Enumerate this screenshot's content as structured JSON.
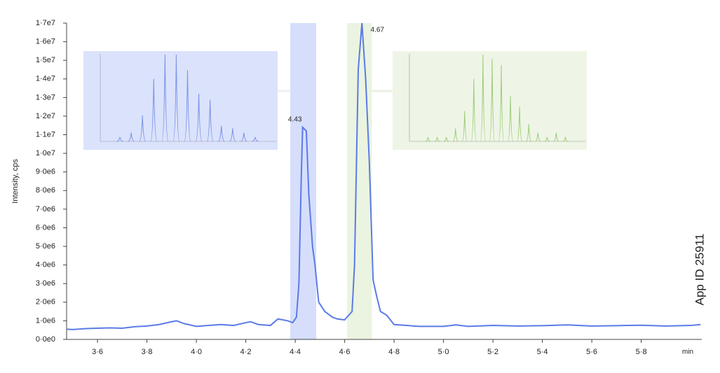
{
  "chart_data": {
    "type": "line",
    "y_label": "Intensity, cps",
    "x_label": "min",
    "side_label": "App ID 25911",
    "xlim": [
      3.475,
      6.045
    ],
    "ylim": [
      0,
      17000000
    ],
    "xticks": [
      {
        "value": 3.6,
        "label": "3·6"
      },
      {
        "value": 3.8,
        "label": "3·8"
      },
      {
        "value": 4.0,
        "label": "4·0"
      },
      {
        "value": 4.2,
        "label": "4·2"
      },
      {
        "value": 4.4,
        "label": "4·4"
      },
      {
        "value": 4.6,
        "label": "4·6"
      },
      {
        "value": 4.8,
        "label": "4·8"
      },
      {
        "value": 5.0,
        "label": "5·0"
      },
      {
        "value": 5.2,
        "label": "5·2"
      },
      {
        "value": 5.4,
        "label": "5·4"
      },
      {
        "value": 5.6,
        "label": "5·6"
      },
      {
        "value": 5.8,
        "label": "5·8"
      }
    ],
    "yticks": [
      {
        "value": 0,
        "label": "0·0e0"
      },
      {
        "value": 1000000,
        "label": "1·0e6"
      },
      {
        "value": 2000000,
        "label": "2·0e6"
      },
      {
        "value": 3000000,
        "label": "3·0e6"
      },
      {
        "value": 4000000,
        "label": "4·0e6"
      },
      {
        "value": 5000000,
        "label": "5·0e6"
      },
      {
        "value": 6000000,
        "label": "6·0e6"
      },
      {
        "value": 7000000,
        "label": "7·0e6"
      },
      {
        "value": 8000000,
        "label": "8·0e6"
      },
      {
        "value": 9000000,
        "label": "9·0e6"
      },
      {
        "value": 10000000,
        "label": "1·0e7"
      },
      {
        "value": 11000000,
        "label": "1·1e7"
      },
      {
        "value": 12000000,
        "label": "1·2e7"
      },
      {
        "value": 13000000,
        "label": "1·3e7"
      },
      {
        "value": 14000000,
        "label": "1·4e7"
      },
      {
        "value": 15000000,
        "label": "1·5e7"
      },
      {
        "value": 16000000,
        "label": "1·6e7"
      },
      {
        "value": 17000000,
        "label": "1·7e7"
      }
    ],
    "series": [
      {
        "color": "#5b7be6",
        "x": [
          3.475,
          3.5,
          3.55,
          3.6,
          3.65,
          3.7,
          3.75,
          3.8,
          3.85,
          3.9,
          3.92,
          3.95,
          4.0,
          4.05,
          4.1,
          4.15,
          4.2,
          4.22,
          4.25,
          4.3,
          4.33,
          4.37,
          4.39,
          4.405,
          4.415,
          4.425,
          4.43,
          4.445,
          4.455,
          4.47,
          4.48,
          4.495,
          4.52,
          4.55,
          4.57,
          4.6,
          4.63,
          4.64,
          4.655,
          4.67,
          4.685,
          4.7,
          4.715,
          4.73,
          4.745,
          4.77,
          4.8,
          4.85,
          4.9,
          5.0,
          5.05,
          5.1,
          5.2,
          5.3,
          5.4,
          5.5,
          5.6,
          5.7,
          5.8,
          5.9,
          6.0,
          6.04
        ],
        "values": [
          550000,
          530000,
          580000,
          600000,
          620000,
          600000,
          680000,
          720000,
          800000,
          950000,
          1000000,
          850000,
          700000,
          750000,
          800000,
          750000,
          900000,
          950000,
          800000,
          750000,
          1100000,
          1000000,
          900000,
          1200000,
          3000000,
          9000000,
          11400000,
          11200000,
          7800000,
          5000000,
          4000000,
          2000000,
          1500000,
          1200000,
          1100000,
          1050000,
          1500000,
          4000000,
          14500000,
          17000000,
          14000000,
          9500000,
          3200000,
          2300000,
          1500000,
          1300000,
          800000,
          750000,
          700000,
          700000,
          780000,
          700000,
          750000,
          720000,
          740000,
          780000,
          720000,
          740000,
          760000,
          720000,
          750000,
          800000
        ]
      }
    ],
    "bands": [
      {
        "from": 4.38,
        "to": 4.485,
        "color": "#d6defc"
      },
      {
        "from": 4.61,
        "to": 4.71,
        "color": "#eaf4e0"
      }
    ],
    "annotations": [
      {
        "text": "4.43",
        "x": 4.43,
        "y": 11400000
      },
      {
        "text": "4.67",
        "x": 4.67,
        "y": 17000000
      }
    ],
    "insets": [
      {
        "color": "#dbe2fb",
        "line": "#7892e8",
        "values": [
          0.05,
          0.1,
          0.3,
          0.72,
          1.0,
          1.0,
          0.82,
          0.55,
          0.48,
          0.18,
          0.15,
          0.1,
          0.05
        ]
      },
      {
        "color": "#eef5e6",
        "line": "#9ccc78",
        "values": [
          0.05,
          0.05,
          0.05,
          0.15,
          0.35,
          0.72,
          1.0,
          0.95,
          0.88,
          0.52,
          0.4,
          0.2,
          0.1,
          0.05,
          0.1,
          0.05
        ]
      }
    ]
  }
}
